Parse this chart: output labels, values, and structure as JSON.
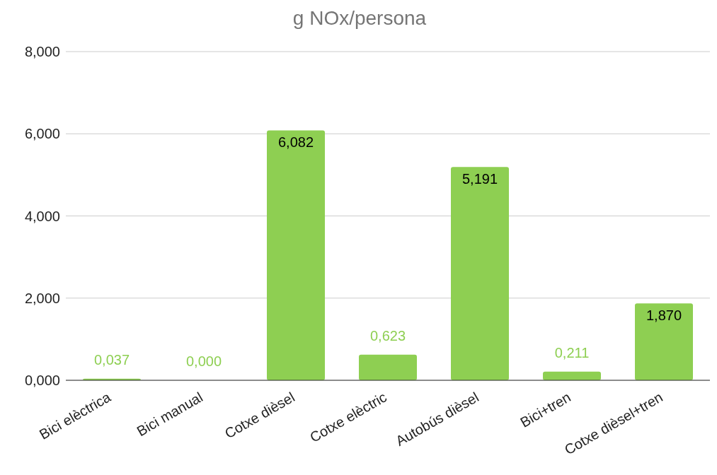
{
  "chart_data": {
    "type": "bar",
    "title": "g NOx/persona",
    "categories": [
      "Bici elèctrica",
      "Bici manual",
      "Cotxe dièsel",
      "Cotxe elèctric",
      "Autobús dièsel",
      "Bici+tren",
      "Cotxe dièsel+tren"
    ],
    "values": [
      0.037,
      0,
      6.082,
      0.623,
      5.191,
      0.211,
      1.87
    ],
    "value_labels": [
      "0,037",
      "0,000",
      "6,082",
      "0,623",
      "5,191",
      "0,211",
      "1,870"
    ],
    "color": "#8ecf52",
    "ylim": [
      0,
      8
    ],
    "yticks": [
      {
        "value": 0,
        "label": "0,000"
      },
      {
        "value": 2,
        "label": "2,000"
      },
      {
        "value": 4,
        "label": "4,000"
      },
      {
        "value": 6,
        "label": "6,000"
      },
      {
        "value": 8,
        "label": "8,000"
      }
    ],
    "grid": "y",
    "legend": false
  }
}
